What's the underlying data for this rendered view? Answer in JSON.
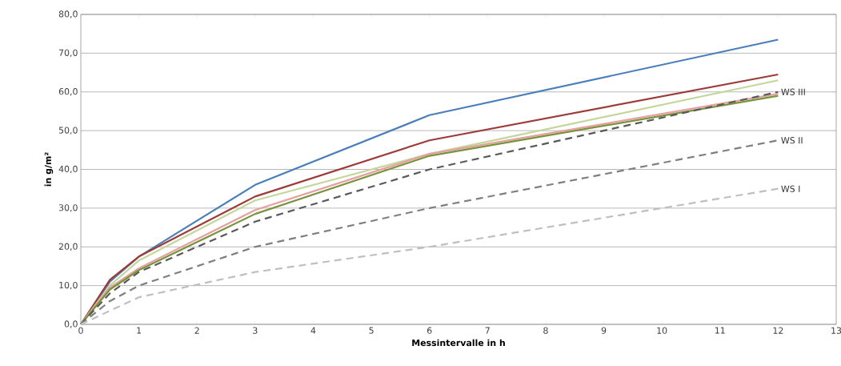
{
  "chart_data": {
    "type": "line",
    "xlabel": "Messintervalle in h",
    "ylabel": "in g/m²",
    "x": [
      0,
      0.5,
      1,
      3,
      6,
      12
    ],
    "series": [
      {
        "color": "#4a7ebb",
        "values": [
          0,
          11,
          17.5,
          36,
          54,
          73.5
        ]
      },
      {
        "color": "#9c3b38",
        "values": [
          0,
          11.5,
          17.5,
          33,
          47.5,
          64.5
        ]
      },
      {
        "color": "#c3d69b",
        "values": [
          0,
          10,
          16.5,
          32,
          44,
          63
        ]
      },
      {
        "color": "#e6a0a0",
        "values": [
          0,
          9.5,
          14.5,
          29.5,
          44,
          59.5
        ]
      },
      {
        "color": "#77933c",
        "values": [
          0,
          9,
          14,
          28.5,
          43.5,
          59
        ]
      },
      {
        "name": "WS III",
        "color": "#595959",
        "line_style": "dashed",
        "values": [
          0,
          8,
          13.5,
          26.5,
          40,
          60
        ]
      },
      {
        "name": "WS II",
        "color": "#7f7f7f",
        "line_style": "dashed",
        "values": [
          0,
          6,
          10,
          20,
          30,
          47.5
        ]
      },
      {
        "name": "WS I",
        "color": "#bfbfbf",
        "line_style": "dashed",
        "values": [
          0,
          3.5,
          7,
          13.5,
          20,
          35
        ]
      }
    ],
    "xlim": [
      0,
      13
    ],
    "xticks": [
      0,
      1,
      2,
      3,
      4,
      5,
      6,
      7,
      8,
      9,
      10,
      11,
      12,
      13
    ],
    "ylim": [
      0,
      80
    ],
    "yticks": [
      {
        "value": 0,
        "label": "0,0"
      },
      {
        "value": 10,
        "label": "10,0"
      },
      {
        "value": 20,
        "label": "20,0"
      },
      {
        "value": 30,
        "label": "30,0"
      },
      {
        "value": 40,
        "label": "40,0"
      },
      {
        "value": 50,
        "label": "50,0"
      },
      {
        "value": 60,
        "label": "60,0"
      },
      {
        "value": 70,
        "label": "70,0"
      },
      {
        "value": 80,
        "label": "80,0"
      }
    ],
    "grid": "y",
    "legend": false
  }
}
